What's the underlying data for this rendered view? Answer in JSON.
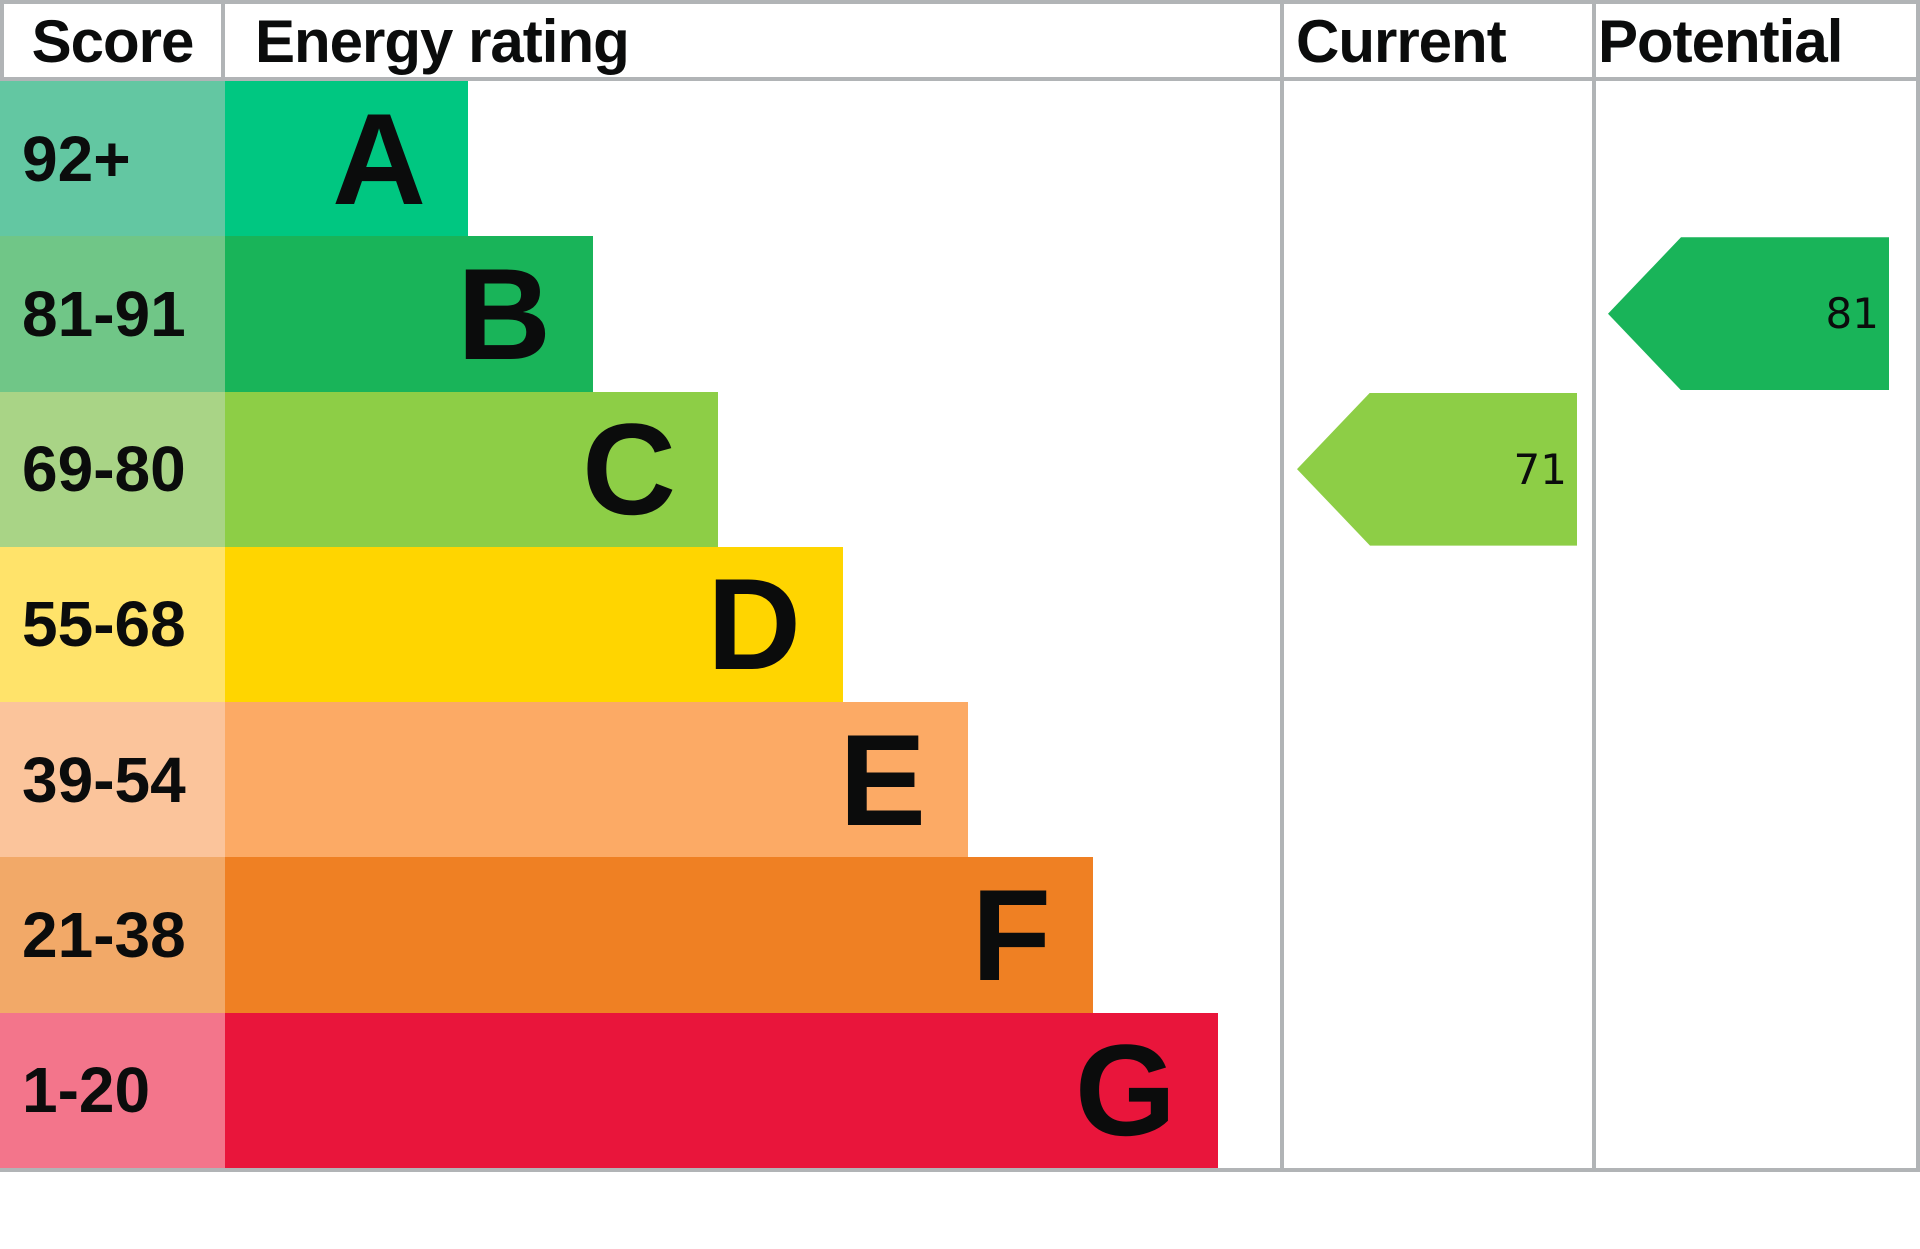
{
  "header": {
    "score_label": "Score",
    "rating_label": "Energy rating",
    "current_label": "Current",
    "potential_label": "Potential"
  },
  "chart_data": {
    "type": "bar",
    "title": "Energy efficiency rating (EPC band chart)",
    "categories": [
      "A",
      "B",
      "C",
      "D",
      "E",
      "F",
      "G"
    ],
    "bands": [
      {
        "score": "92+",
        "letter": "A",
        "bar_color": "#00c781",
        "score_color": "#63c7a2"
      },
      {
        "score": "81-91",
        "letter": "B",
        "bar_color": "#19b459",
        "score_color": "#70c687"
      },
      {
        "score": "69-80",
        "letter": "C",
        "bar_color": "#8dce46",
        "score_color": "#a9d486"
      },
      {
        "score": "55-68",
        "letter": "D",
        "bar_color": "#ffd500",
        "score_color": "#ffe36a"
      },
      {
        "score": "39-54",
        "letter": "E",
        "bar_color": "#fcaa65",
        "score_color": "#fbc49b"
      },
      {
        "score": "21-38",
        "letter": "F",
        "bar_color": "#ef8023",
        "score_color": "#f2a968"
      },
      {
        "score": "1-20",
        "letter": "G",
        "bar_color": "#e9153b",
        "score_color": "#f3758b"
      }
    ],
    "current": {
      "value": 71,
      "band": "C",
      "color": "#8dce46"
    },
    "potential": {
      "value": 81,
      "band": "B",
      "color": "#19b459"
    },
    "legend_position": "none",
    "grid": false
  },
  "style": {
    "border_color": "#b1b4b6",
    "text_color": "#0b0c0c",
    "background": "#ffffff"
  }
}
